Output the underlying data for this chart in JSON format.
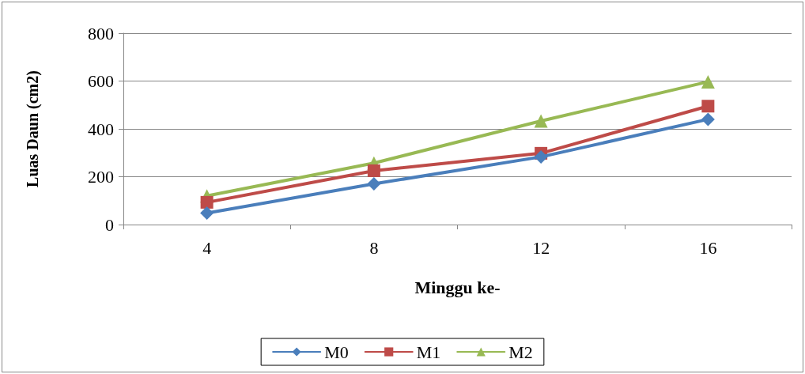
{
  "chart_data": {
    "type": "line",
    "xlabel": "Minggu ke-",
    "ylabel": "Luas Daun (cm2)",
    "categories": [
      "4",
      "8",
      "12",
      "16"
    ],
    "series": [
      {
        "name": "M0",
        "color": "#4a7ebb",
        "marker": "diamond",
        "values": [
          48,
          170,
          283,
          440
        ]
      },
      {
        "name": "M1",
        "color": "#be4b48",
        "marker": "square",
        "values": [
          93,
          225,
          298,
          495
        ]
      },
      {
        "name": "M2",
        "color": "#98b954",
        "marker": "triangle",
        "values": [
          120,
          257,
          433,
          597
        ]
      }
    ],
    "ylim": [
      0,
      800
    ],
    "yticks": [
      0,
      200,
      400,
      600,
      800
    ],
    "grid": "y",
    "legend": "bottom",
    "line_style": "solid"
  }
}
